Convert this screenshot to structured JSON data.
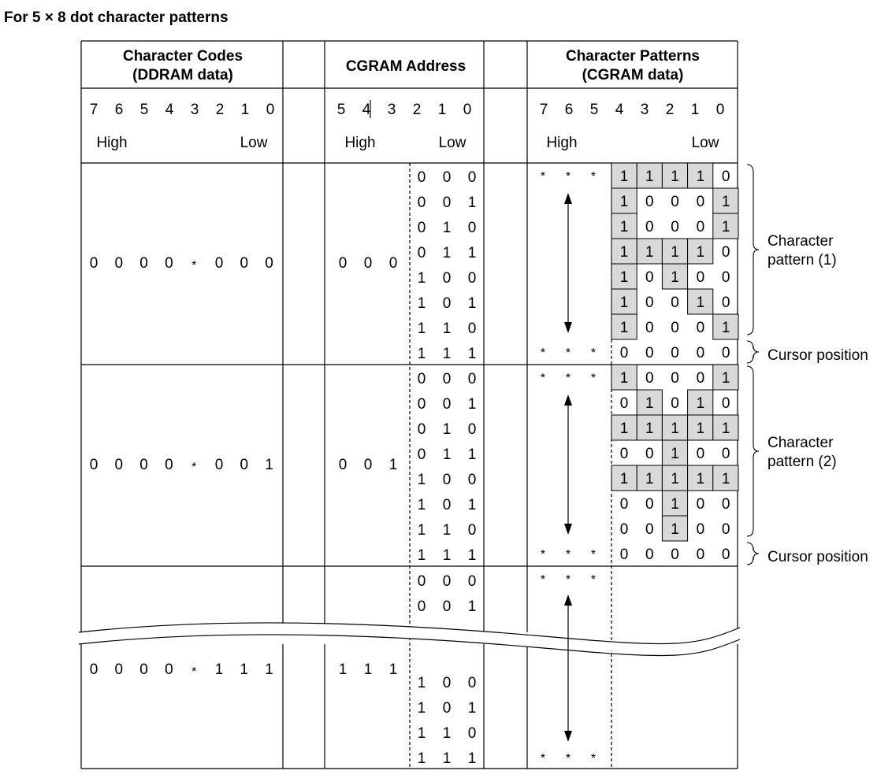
{
  "title": "For 5 × 8 dot character patterns",
  "headers": {
    "character_codes": [
      "Character Codes",
      "(DDRAM data)"
    ],
    "cgram_address": "CGRAM Address",
    "character_patterns": [
      "Character Patterns",
      "(CGRAM data)"
    ]
  },
  "bit_labels": {
    "codes": [
      "7",
      "6",
      "5",
      "4",
      "3",
      "2",
      "1",
      "0"
    ],
    "address": [
      "5",
      "4",
      "3",
      "2",
      "1",
      "0"
    ],
    "patterns": [
      "7",
      "6",
      "5",
      "4",
      "3",
      "2",
      "1",
      "0"
    ],
    "high": "High",
    "low": "Low"
  },
  "blocks": [
    {
      "code_bits": [
        "0",
        "0",
        "0",
        "0",
        "*",
        "0",
        "0",
        "0"
      ],
      "address_high": [
        "0",
        "0",
        "0"
      ],
      "address_low": [
        "000",
        "001",
        "010",
        "011",
        "100",
        "101",
        "110",
        "111"
      ],
      "pattern_rows": [
        "11110",
        "10001",
        "10001",
        "11110",
        "10100",
        "10010",
        "10001",
        "00000"
      ],
      "label": [
        "Character",
        "pattern (1)"
      ],
      "cursor_label": "Cursor position"
    },
    {
      "code_bits": [
        "0",
        "0",
        "0",
        "0",
        "*",
        "0",
        "0",
        "1"
      ],
      "address_high": [
        "0",
        "0",
        "1"
      ],
      "address_low": [
        "000",
        "001",
        "010",
        "011",
        "100",
        "101",
        "110",
        "111"
      ],
      "pattern_rows": [
        "10001",
        "01010",
        "11111",
        "00100",
        "11111",
        "00100",
        "00100",
        "00000"
      ],
      "label": [
        "Character",
        "pattern (2)"
      ],
      "cursor_label": "Cursor position"
    },
    {
      "code_bits": [
        "0",
        "0",
        "0",
        "0",
        "*",
        "1",
        "1",
        "1"
      ],
      "address_high": [
        "1",
        "1",
        "1"
      ],
      "address_low_top": [
        "000",
        "001"
      ],
      "address_low_bottom": [
        "100",
        "101",
        "110",
        "111"
      ]
    }
  ],
  "undefined_bits": [
    "*",
    "*",
    "*"
  ],
  "colors": {
    "shade": "#d9d9d9",
    "line": "#000000"
  }
}
